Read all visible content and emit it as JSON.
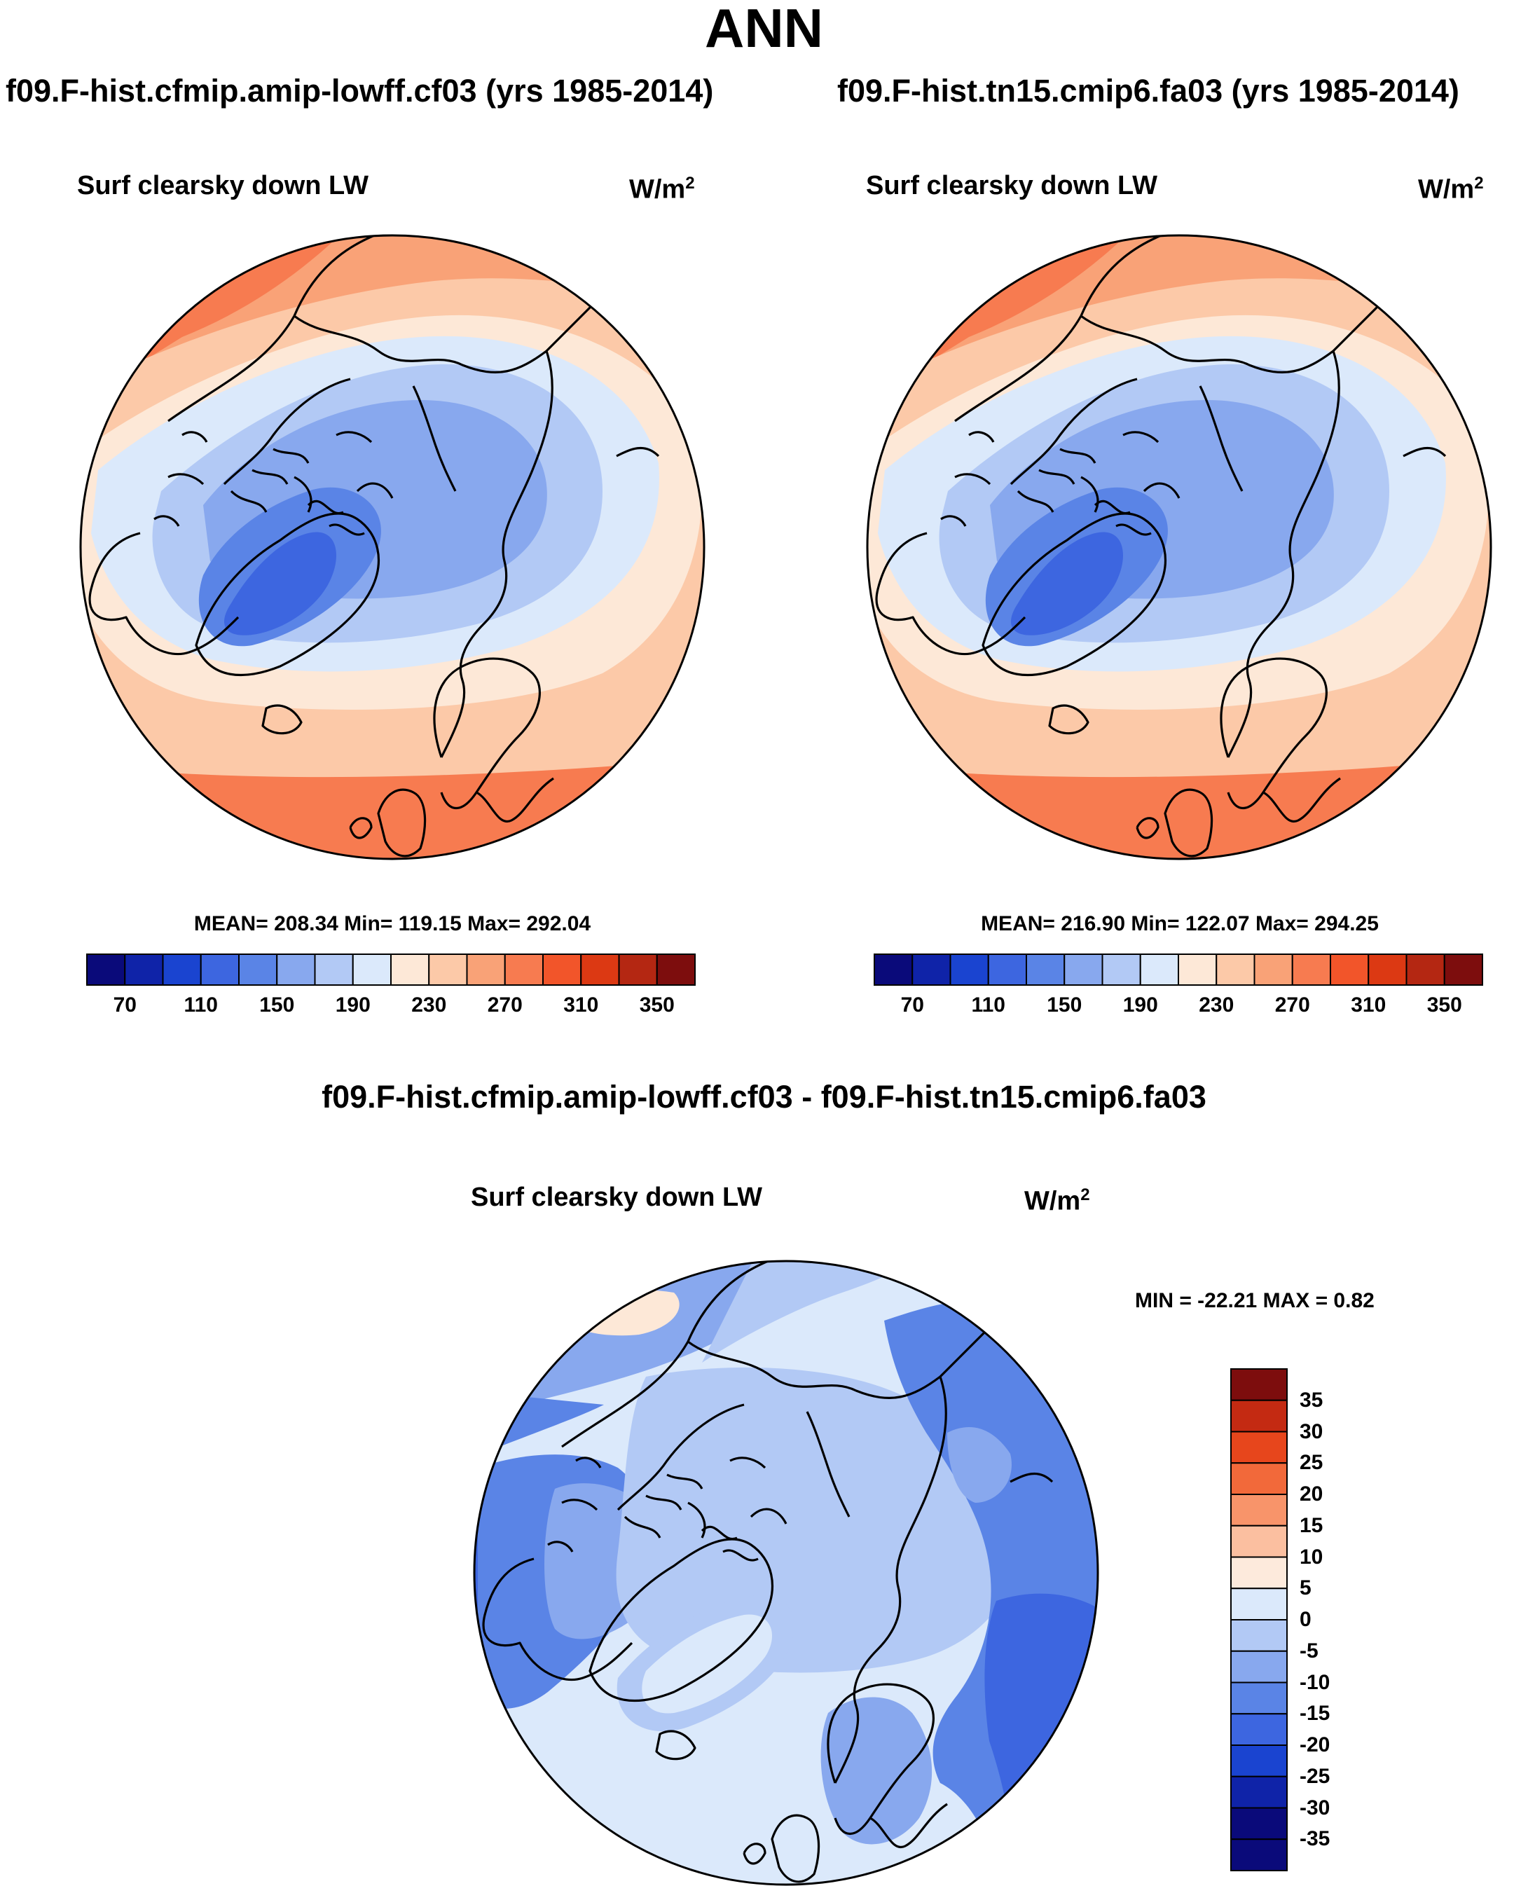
{
  "figure": {
    "title": "ANN",
    "variable": "Surf clearsky down LW",
    "units_base": "W/m",
    "units_exp": "2"
  },
  "panels": {
    "left": {
      "case": "f09.F-hist.cfmip.amip-lowff.cf03 (yrs 1985-2014)",
      "stats": "MEAN= 208.34  Min= 119.15  Max= 292.04",
      "mean": 208.34,
      "min": 119.15,
      "max": 292.04
    },
    "right": {
      "case": "f09.F-hist.tn15.cmip6.fa03 (yrs 1985-2014)",
      "stats": "MEAN= 216.90  Min= 122.07  Max= 294.25",
      "mean": 216.9,
      "min": 122.07,
      "max": 294.25
    },
    "diff": {
      "case": "f09.F-hist.cfmip.amip-lowff.cf03 - f09.F-hist.tn15.cmip6.fa03",
      "stats": "MIN = -22.21 MAX =   0.82",
      "min": -22.21,
      "max": 0.82
    }
  },
  "colorbars": {
    "abs": {
      "colors": [
        "#0a0a7a",
        "#0f23a8",
        "#1a44d0",
        "#3d66e0",
        "#5a84e6",
        "#88a8ee",
        "#b2c9f5",
        "#dbe9fb",
        "#fde8d7",
        "#fcc9a8",
        "#f9a277",
        "#f77b50",
        "#f2552a",
        "#dc3913",
        "#b42712",
        "#7d0d0d"
      ],
      "labels": [
        "70",
        "110",
        "150",
        "190",
        "230",
        "270",
        "310",
        "350"
      ]
    },
    "diff": {
      "colors": [
        "#7d0d0d",
        "#c42a12",
        "#e7461c",
        "#f2693a",
        "#f8946a",
        "#fbbfa0",
        "#fdeadc",
        "#dbe9fb",
        "#b2c9f5",
        "#88a8ee",
        "#5a84e6",
        "#3d66e0",
        "#1a44d0",
        "#0f23a8",
        "#0a0a7a"
      ],
      "labels": [
        "35",
        "30",
        "25",
        "20",
        "15",
        "10",
        "5",
        "0",
        "-5",
        "-10",
        "-15",
        "-20",
        "-25",
        "-30",
        "-35"
      ]
    }
  },
  "map_colors": {
    "abs": {
      "c130": "#3d66e0",
      "c150": "#5a84e6",
      "c170": "#88a8ee",
      "c190": "#b2c9f5",
      "c210": "#dbe9fb",
      "c230": "#fde8d7",
      "c250": "#fcc9a8",
      "c270": "#f9a277",
      "c290": "#f77b50"
    },
    "diff": {
      "pos": "#fde8d7",
      "d0": "#dbe9fb",
      "d5": "#b2c9f5",
      "d10": "#88a8ee",
      "d15": "#5a84e6",
      "d20": "#3d66e0"
    }
  }
}
